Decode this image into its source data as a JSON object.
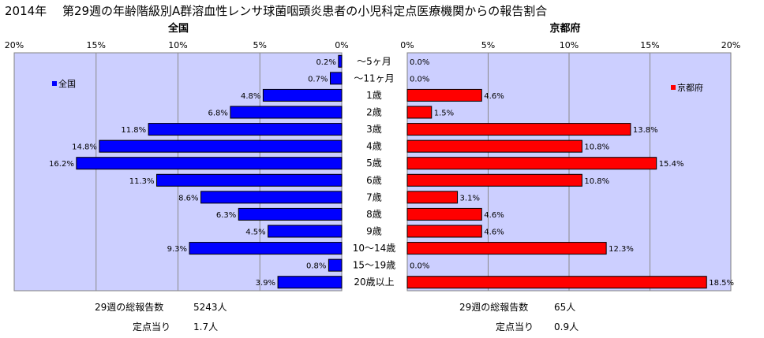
{
  "title": "2014年　 第29週の年齢階級別A群溶血性レンサ球菌咽頭炎患者の小児科定点医療機関からの報告割合",
  "colors": {
    "national": "#0000ff",
    "kyoto": "#ff0000",
    "plot_bg": "#cccfff"
  },
  "chart_data": [
    {
      "type": "bar",
      "orientation": "horizontal",
      "title": "全国",
      "legend": "全国",
      "legend_position": "top-left",
      "x_direction": "reversed",
      "xlim": [
        0,
        20
      ],
      "xticks": [
        "20%",
        "15%",
        "10%",
        "5%",
        "0%"
      ],
      "categories": [
        "～5ヶ月",
        "～11ヶ月",
        "1歳",
        "2歳",
        "3歳",
        "4歳",
        "5歳",
        "6歳",
        "7歳",
        "8歳",
        "9歳",
        "10～14歳",
        "15～19歳",
        "20歳以上"
      ],
      "values": [
        0.2,
        0.7,
        4.8,
        6.8,
        11.8,
        14.8,
        16.2,
        11.3,
        8.6,
        6.3,
        4.5,
        9.3,
        0.8,
        3.9
      ],
      "labels": [
        "0.2%",
        "0.7%",
        "4.8%",
        "6.8%",
        "11.8%",
        "14.8%",
        "16.2%",
        "11.3%",
        "8.6%",
        "6.3%",
        "4.5%",
        "9.3%",
        "0.8%",
        "3.9%"
      ],
      "grid": true
    },
    {
      "type": "bar",
      "orientation": "horizontal",
      "title": "京都府",
      "legend": "京都府",
      "legend_position": "top-right",
      "xlim": [
        0,
        20
      ],
      "xticks": [
        "0%",
        "5%",
        "10%",
        "15%",
        "20%"
      ],
      "categories": [
        "～5ヶ月",
        "～11ヶ月",
        "1歳",
        "2歳",
        "3歳",
        "4歳",
        "5歳",
        "6歳",
        "7歳",
        "8歳",
        "9歳",
        "10～14歳",
        "15～19歳",
        "20歳以上"
      ],
      "values": [
        0.0,
        0.0,
        4.6,
        1.5,
        13.8,
        10.8,
        15.4,
        10.8,
        3.1,
        4.6,
        4.6,
        12.3,
        0.0,
        18.5
      ],
      "labels": [
        "0.0%",
        "0.0%",
        "4.6%",
        "1.5%",
        "13.8%",
        "10.8%",
        "15.4%",
        "10.8%",
        "3.1%",
        "4.6%",
        "4.6%",
        "12.3%",
        "0.0%",
        "18.5%"
      ],
      "grid": true
    }
  ],
  "summary": {
    "national": {
      "total_label": "29週の総報告数",
      "total_value": "5243人",
      "per_point_label": "定点当り",
      "per_point_value": "1.7人"
    },
    "kyoto": {
      "total_label": "29週の総報告数",
      "total_value": "65人",
      "per_point_label": "定点当り",
      "per_point_value": "0.9人"
    }
  }
}
